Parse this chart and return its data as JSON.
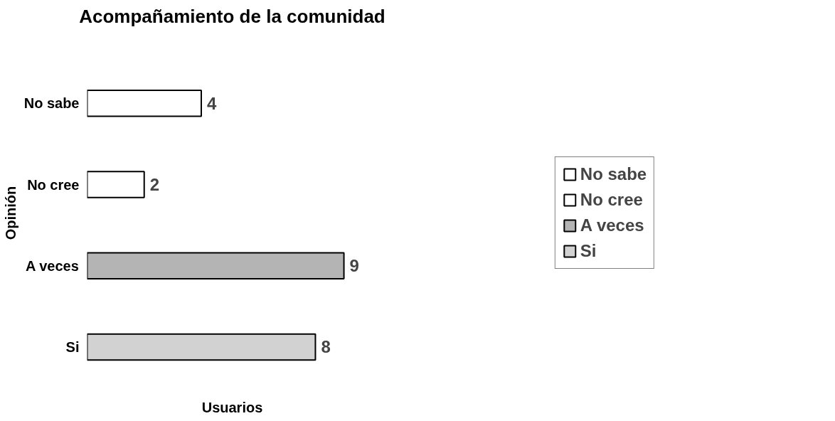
{
  "chart_data": {
    "type": "bar",
    "orientation": "horizontal",
    "stacked": true,
    "title": "Acompañamiento de la comunidad",
    "xlabel": "Usuarios",
    "ylabel": "Opinión",
    "categories": [
      "No sabe",
      "No cree",
      "A veces",
      "Si"
    ],
    "series": [
      {
        "name": "No sabe",
        "color": "#ffffff",
        "values": [
          4,
          null,
          null,
          null
        ]
      },
      {
        "name": "No cree",
        "color": "#ffffff",
        "values": [
          null,
          2,
          null,
          null
        ]
      },
      {
        "name": "A veces",
        "color": "#b4b4b4",
        "values": [
          null,
          null,
          9,
          null
        ]
      },
      {
        "name": "Si",
        "color": "#d2d2d2",
        "values": [
          null,
          null,
          null,
          8
        ]
      }
    ],
    "data_labels": true,
    "legend": "right",
    "grid": false
  }
}
